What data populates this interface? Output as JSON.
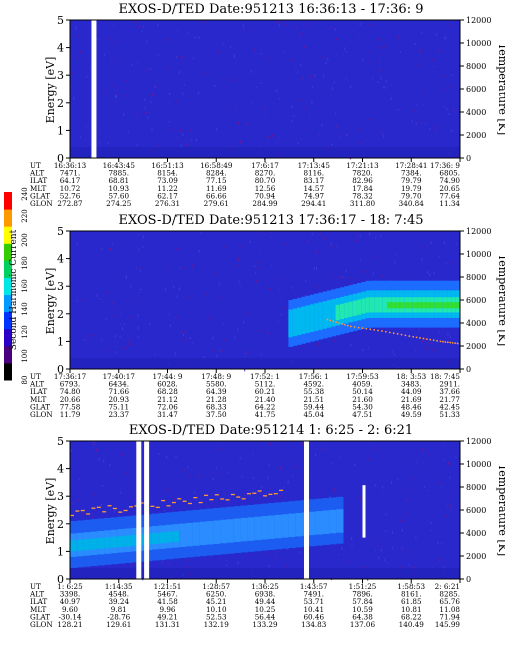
{
  "chart_data": [
    {
      "type": "heatmap",
      "title": "EXOS-D/TED  Date:951213  16:36:13 - 17:36: 9",
      "ylabel": "Energy [eV]",
      "y2label": "Temperature [K]",
      "ylim": [
        0,
        5
      ],
      "y2lim": [
        0,
        12000
      ],
      "yticks": [
        "0",
        "1",
        "2",
        "3",
        "4",
        "5"
      ],
      "y2ticks": [
        "0",
        "2000",
        "4000",
        "6000",
        "8000",
        "10000",
        "12000"
      ],
      "xcount": 9,
      "gaps": [
        0.055
      ],
      "band": {
        "center_start": 0,
        "center_end": 0,
        "active": false
      },
      "tempTrace": [],
      "markers": [],
      "rows": [
        {
          "label": "UT",
          "values": [
            "16:36:13",
            "16:43:45",
            "16:51:13",
            "16:58:49",
            "17:6:17",
            "17:13:45",
            "17:21:13",
            "17:28:41",
            "17:36: 9"
          ]
        },
        {
          "label": "ALT",
          "values": [
            "7471.",
            "7885.",
            "8154.",
            "8284.",
            "8270.",
            "8116.",
            "7820.",
            "7384.",
            "6805."
          ]
        },
        {
          "label": "ILAT",
          "values": [
            "64.17",
            "68.81",
            "73.09",
            "77.15",
            "80.70",
            "83.17",
            "82.96",
            "79.79",
            "74.90"
          ]
        },
        {
          "label": "MLT",
          "values": [
            "10.72",
            "10.93",
            "11.22",
            "11.69",
            "12.56",
            "14.57",
            "17.84",
            "19.79",
            "20.65"
          ]
        },
        {
          "label": "GLAT",
          "values": [
            "52.76",
            "57.60",
            "62.17",
            "66.66",
            "70.94",
            "74.97",
            "78.32",
            "79.70",
            "77.64"
          ]
        },
        {
          "label": "GLON",
          "values": [
            "272.87",
            "274.25",
            "276.31",
            "279.61",
            "284.99",
            "294.41",
            "311.80",
            "340.84",
            "11.34"
          ]
        }
      ]
    },
    {
      "type": "heatmap",
      "title": "EXOS-D/TED  Date:951213  17:36:17 - 18: 7:45",
      "ylabel": "Energy [eV]",
      "y2label": "Temperature [K]",
      "ylim": [
        0,
        5
      ],
      "y2lim": [
        0,
        12000
      ],
      "yticks": [
        "0",
        "1",
        "2",
        "3",
        "4",
        "5"
      ],
      "y2ticks": [
        "0",
        "2000",
        "4000",
        "6000",
        "8000",
        "10000",
        "12000"
      ],
      "xcount": 9,
      "gaps": [],
      "band": {
        "start_frac": 0.56,
        "center_start": 1.6,
        "center_end": 2.3,
        "active": true
      },
      "tempTrace": [
        [
          0.66,
          4300
        ],
        [
          0.72,
          3700
        ],
        [
          0.8,
          3300
        ],
        [
          0.88,
          2800
        ],
        [
          0.95,
          2400
        ],
        [
          1.0,
          2200
        ]
      ],
      "markers": [],
      "rows": [
        {
          "label": "UT",
          "values": [
            "17:36:17",
            "17:40:17",
            "17:44: 9",
            "17:48: 9",
            "17:52: 1",
            "17:56: 1",
            "17:59:53",
            "18: 3:53",
            "18: 7:45"
          ]
        },
        {
          "label": "ALT",
          "values": [
            "6793.",
            "6434.",
            "6028.",
            "5580.",
            "5112.",
            "4592.",
            "4059.",
            "3483.",
            "2911."
          ]
        },
        {
          "label": "ILAT",
          "values": [
            "74.80",
            "71.66",
            "68.28",
            "64.39",
            "60.21",
            "55.38",
            "50.14",
            "44.09",
            "37.66"
          ]
        },
        {
          "label": "MLT",
          "values": [
            "20.66",
            "20.93",
            "21.12",
            "21.28",
            "21.40",
            "21.51",
            "21.60",
            "21.69",
            "21.77"
          ]
        },
        {
          "label": "GLAT",
          "values": [
            "77.58",
            "75.11",
            "72.06",
            "68.33",
            "64.22",
            "59.44",
            "54.30",
            "48.46",
            "42.45"
          ]
        },
        {
          "label": "GLON",
          "values": [
            "11.79",
            "23.37",
            "31.47",
            "37.50",
            "41.75",
            "45.04",
            "47.51",
            "49.59",
            "51.33"
          ]
        }
      ]
    },
    {
      "type": "heatmap",
      "title": "EXOS-D/TED  Date:951214  1: 6:25 - 2: 6:21",
      "ylabel": "Energy [eV]",
      "y2label": "Temperature [K]",
      "ylim": [
        0,
        5
      ],
      "y2lim": [
        0,
        12000
      ],
      "yticks": [
        "0",
        "1",
        "2",
        "3",
        "4",
        "5"
      ],
      "y2ticks": [
        "0",
        "2000",
        "4000",
        "6000",
        "8000",
        "10000",
        "12000"
      ],
      "xcount": 9,
      "gaps": [
        0.17,
        0.19,
        0.6
      ],
      "band": {
        "center_start": 1.2,
        "center_end": 2.1,
        "active": true,
        "end_frac": 0.7
      },
      "tempTrace": [],
      "markers": [
        0.75
      ],
      "rows": [
        {
          "label": "UT",
          "values": [
            "1: 6:25",
            "1:14:35",
            "1:21:51",
            "1:28:57",
            "1:36:25",
            "1:43:57",
            "1:51:25",
            "1:58:53",
            "2: 6:21"
          ]
        },
        {
          "label": "ALT",
          "values": [
            "3398.",
            "4548.",
            "5467.",
            "6250.",
            "6938.",
            "7491.",
            "7896.",
            "8161.",
            "8285."
          ]
        },
        {
          "label": "ILAT",
          "values": [
            "40.97",
            "39.24",
            "41.58",
            "45.21",
            "49.44",
            "53.71",
            "57.84",
            "61.85",
            "65.76"
          ]
        },
        {
          "label": "MLT",
          "values": [
            "9.60",
            "9.81",
            "9.96",
            "10.10",
            "10.25",
            "10.41",
            "10.59",
            "10.81",
            "11.08"
          ]
        },
        {
          "label": "GLAT",
          "values": [
            "-30.14",
            "-28.76",
            "49.21",
            "52.53",
            "56.44",
            "60.46",
            "64.38",
            "68.22",
            "71.94"
          ]
        },
        {
          "label": "GLON",
          "values": [
            "128.21",
            "129.61",
            "131.31",
            "132.19",
            "133.29",
            "134.83",
            "137.06",
            "140.49",
            "145.99"
          ]
        }
      ]
    }
  ],
  "colorbar": {
    "label": "Second Harmonic Current",
    "ticks": [
      "80",
      "100",
      "120",
      "140",
      "160",
      "180",
      "200",
      "220",
      "240"
    ],
    "range": [
      80,
      240
    ],
    "colors": [
      "#000000",
      "#4b007f",
      "#2a00c8",
      "#0033ff",
      "#0099ff",
      "#00e5e5",
      "#00d060",
      "#33cc00",
      "#ffff00",
      "#ff9900",
      "#ff0000"
    ]
  }
}
